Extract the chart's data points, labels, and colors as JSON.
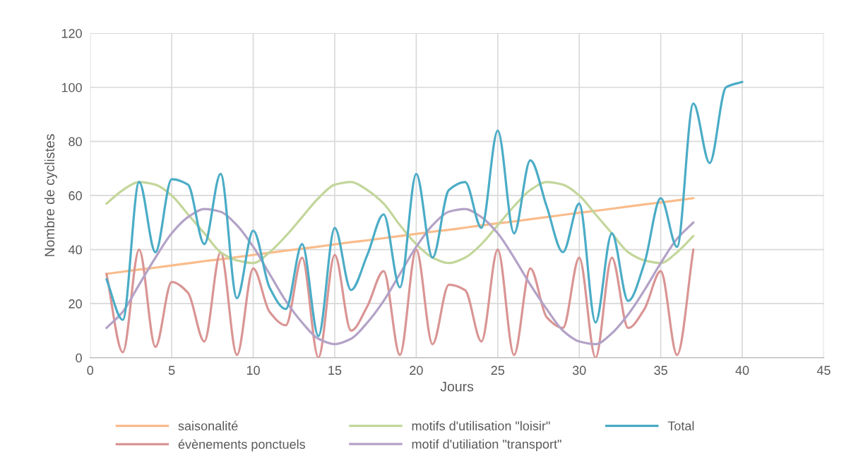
{
  "chart_data": {
    "type": "line",
    "xlabel": "Jours",
    "ylabel": "Nombre de cyclistes",
    "xlim": [
      0,
      45
    ],
    "xticks": [
      0,
      5,
      10,
      15,
      20,
      25,
      30,
      35,
      40,
      45
    ],
    "ylim": [
      0,
      120
    ],
    "yticks": [
      0,
      20,
      40,
      60,
      80,
      100,
      120
    ],
    "grid": true,
    "legend": "bottom",
    "marker": "none",
    "line_style": "solid",
    "x": [
      1,
      2,
      3,
      4,
      5,
      6,
      7,
      8,
      9,
      10,
      11,
      12,
      13,
      14,
      15,
      16,
      17,
      18,
      19,
      20,
      21,
      22,
      23,
      24,
      25,
      26,
      27,
      28,
      29,
      30,
      31,
      32,
      33,
      34,
      35,
      36,
      37
    ],
    "series": [
      {
        "name": "saisonalité",
        "color": "#f9bc8c",
        "values": [
          31,
          31.8,
          32.6,
          33.3,
          34.1,
          34.9,
          35.7,
          36.4,
          37.2,
          38,
          38.8,
          39.6,
          40.3,
          41.1,
          41.9,
          42.7,
          43.4,
          44.2,
          45,
          45.8,
          46.6,
          47.3,
          48.1,
          48.9,
          49.7,
          50.4,
          51.2,
          52,
          52.8,
          53.6,
          54.3,
          55.1,
          55.9,
          56.7,
          57.4,
          58.2,
          59
        ]
      },
      {
        "name": "évènements ponctuels",
        "color": "#d99594",
        "values": [
          31,
          2,
          40,
          4,
          28,
          24,
          6,
          39,
          1,
          33,
          17,
          12,
          37,
          0,
          38,
          10,
          19,
          32,
          1,
          40,
          5,
          27,
          25,
          6,
          40,
          1,
          33,
          15,
          11,
          37,
          0,
          37,
          11,
          18,
          32,
          1,
          40
        ]
      },
      {
        "name": "motifs d'utilisation \"loisir\"",
        "color": "#c3d69b",
        "values": [
          57,
          62,
          65,
          64,
          60,
          53,
          46,
          39,
          36,
          35,
          39,
          45,
          52,
          59,
          64,
          65,
          62,
          57,
          49,
          42,
          37,
          35,
          37,
          42,
          49,
          56,
          62,
          65,
          64,
          60,
          53,
          46,
          39,
          36,
          35,
          39,
          45
        ]
      },
      {
        "name": "motif d'utiliation \"transport\"",
        "color": "#b3a2c7",
        "values": [
          11,
          17,
          27,
          37,
          46,
          52,
          55,
          54,
          49,
          41,
          31,
          21,
          13,
          7,
          5,
          7,
          13,
          21,
          31,
          41,
          49,
          54,
          55,
          52,
          46,
          37,
          27,
          18,
          10,
          6,
          5,
          9,
          16,
          25,
          35,
          44,
          50
        ]
      },
      {
        "name": "Total",
        "color": "#4bacc6",
        "x": [
          1,
          2,
          3,
          4,
          5,
          6,
          7,
          8,
          9,
          10,
          11,
          12,
          13,
          14,
          15,
          16,
          17,
          18,
          19,
          20,
          21,
          22,
          23,
          24,
          25,
          26,
          27,
          28,
          29,
          30,
          31,
          32,
          33,
          34,
          35,
          36,
          37,
          38,
          39,
          40
        ],
        "values": [
          29,
          14,
          65,
          39,
          66,
          64,
          42,
          68,
          22,
          47,
          26,
          18,
          42,
          8,
          48,
          25,
          38,
          53,
          26,
          68,
          37,
          62,
          65,
          48,
          84,
          46,
          73,
          56,
          39,
          57,
          13,
          46,
          21,
          35,
          59,
          41,
          94,
          72,
          100,
          102
        ]
      }
    ]
  }
}
